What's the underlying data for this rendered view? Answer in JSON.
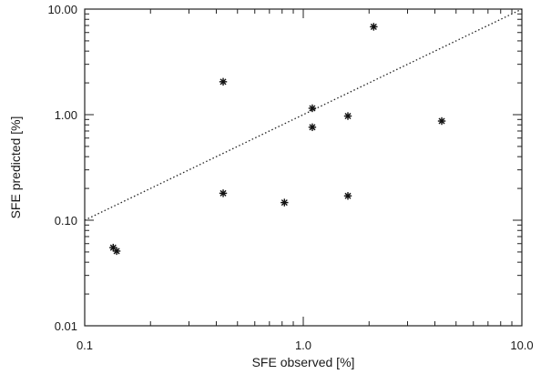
{
  "chart_data": {
    "type": "scatter",
    "title": "",
    "xlabel": "SFE observed [%]",
    "ylabel": "SFE predicted [%]",
    "xscale": "log",
    "yscale": "log",
    "xlim": [
      0.1,
      10.0
    ],
    "ylim": [
      0.01,
      10.0
    ],
    "x_ticks": [
      0.1,
      1.0,
      10.0
    ],
    "x_tick_labels": [
      "0.1",
      "1.0",
      "10.0"
    ],
    "y_ticks": [
      0.01,
      0.1,
      1.0,
      10.0
    ],
    "y_tick_labels": [
      "0.01",
      "0.10",
      "1.00",
      "10.00"
    ],
    "grid": false,
    "marker": "asterisk",
    "points": [
      {
        "x": 0.135,
        "y": 0.055
      },
      {
        "x": 0.14,
        "y": 0.051
      },
      {
        "x": 0.43,
        "y": 2.05
      },
      {
        "x": 0.43,
        "y": 0.18
      },
      {
        "x": 0.82,
        "y": 0.147
      },
      {
        "x": 1.1,
        "y": 1.15
      },
      {
        "x": 1.1,
        "y": 0.76
      },
      {
        "x": 1.6,
        "y": 0.97
      },
      {
        "x": 1.6,
        "y": 0.17
      },
      {
        "x": 2.1,
        "y": 6.8
      },
      {
        "x": 4.3,
        "y": 0.87
      }
    ],
    "reference_line": {
      "style": "dotted",
      "from": [
        0.1,
        0.1
      ],
      "to": [
        10.0,
        10.0
      ]
    }
  }
}
